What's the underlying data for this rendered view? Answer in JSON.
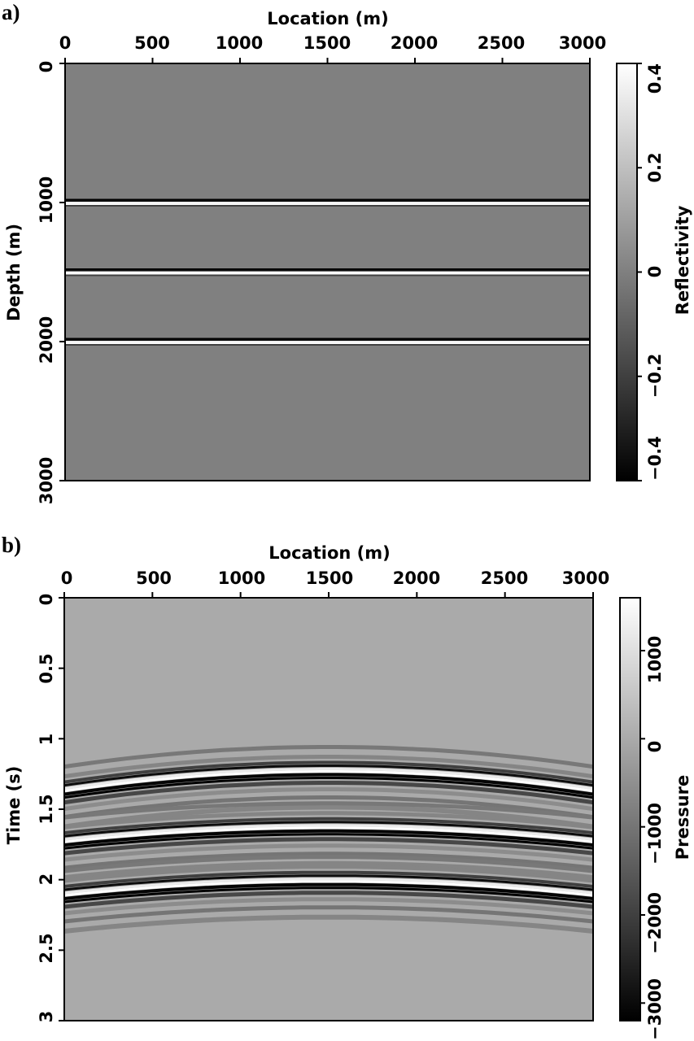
{
  "chart_data": [
    {
      "type": "heatmap",
      "panel_label": "a)",
      "xlabel": "Location (m)",
      "ylabel": "Depth (m)",
      "colorbar_label": "Reflectivity",
      "xlim": [
        0,
        3000
      ],
      "ylim": [
        0,
        3000
      ],
      "y_inverted": true,
      "x_ticks": [
        "0",
        "500",
        "1000",
        "1500",
        "2000",
        "2500",
        "3000"
      ],
      "x_tick_values": [
        0,
        500,
        1000,
        1500,
        2000,
        2500,
        3000
      ],
      "y_ticks": [
        "0",
        "1000",
        "2000",
        "3000"
      ],
      "y_tick_values": [
        0,
        1000,
        2000,
        3000
      ],
      "clim": [
        -0.4,
        0.4
      ],
      "colorbar_ticks": [
        "0.4",
        "0.2",
        "0",
        "−0.2",
        "−0.4"
      ],
      "colorbar_tick_values": [
        0.4,
        0.2,
        0,
        -0.2,
        -0.4
      ],
      "colormap": "gray",
      "background_value": 0,
      "reflectors": [
        {
          "depth": 1000,
          "shape": "flat"
        },
        {
          "depth": 1500,
          "shape": "flat"
        },
        {
          "depth": 2000,
          "shape": "flat"
        }
      ]
    },
    {
      "type": "heatmap",
      "panel_label": "b)",
      "xlabel": "Location (m)",
      "ylabel": "Time (s)",
      "colorbar_label": "Pressure",
      "xlim": [
        0,
        3000
      ],
      "ylim": [
        0,
        3
      ],
      "y_inverted": true,
      "x_ticks": [
        "0",
        "500",
        "1000",
        "1500",
        "2000",
        "2500",
        "3000"
      ],
      "x_tick_values": [
        0,
        500,
        1000,
        1500,
        2000,
        2500,
        3000
      ],
      "y_ticks": [
        "0",
        "0.5",
        "1",
        "1.5",
        "2",
        "2.5",
        "3"
      ],
      "y_tick_values": [
        0,
        0.5,
        1,
        1.5,
        2,
        2.5,
        3
      ],
      "clim": [
        -3200,
        1600
      ],
      "colorbar_ticks": [
        "1000",
        "0",
        "−1000",
        "−2000",
        "−3000"
      ],
      "colorbar_tick_values": [
        1000,
        0,
        -1000,
        -2000,
        -3000
      ],
      "colormap": "gray",
      "background_value": 0,
      "source_location": 1500,
      "events": [
        {
          "apex_time": 1.22,
          "edge_time": 1.36
        },
        {
          "apex_time": 1.62,
          "edge_time": 1.72
        },
        {
          "apex_time": 2.0,
          "edge_time": 2.1
        }
      ]
    }
  ]
}
